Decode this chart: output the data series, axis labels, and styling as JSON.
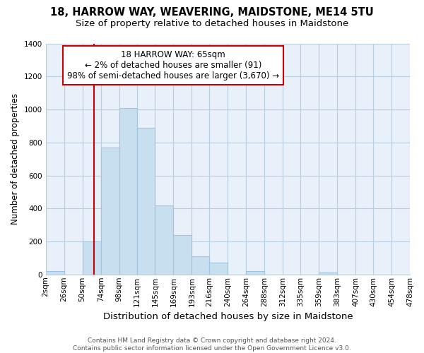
{
  "title": "18, HARROW WAY, WEAVERING, MAIDSTONE, ME14 5TU",
  "subtitle": "Size of property relative to detached houses in Maidstone",
  "xlabel": "Distribution of detached houses by size in Maidstone",
  "ylabel": "Number of detached properties",
  "bin_edges": [
    2,
    26,
    50,
    74,
    98,
    121,
    145,
    169,
    193,
    216,
    240,
    264,
    288,
    312,
    335,
    359,
    383,
    407,
    430,
    454,
    478
  ],
  "bin_counts": [
    20,
    0,
    200,
    770,
    1010,
    890,
    420,
    240,
    110,
    70,
    0,
    20,
    0,
    0,
    0,
    10,
    0,
    0,
    0,
    0
  ],
  "bar_color": "#c8dff0",
  "bar_edge_color": "#a0c4e0",
  "plot_bg_color": "#e8f0fa",
  "grid_color": "#b8cee0",
  "property_size": 65,
  "vline_color": "#cc0000",
  "vline_x": 65,
  "annotation_line1": "18 HARROW WAY: 65sqm",
  "annotation_line2": "← 2% of detached houses are smaller (91)",
  "annotation_line3": "98% of semi-detached houses are larger (3,670) →",
  "annotation_box_color": "white",
  "annotation_box_edge_color": "#cc0000",
  "ylim": [
    0,
    1400
  ],
  "yticks": [
    0,
    200,
    400,
    600,
    800,
    1000,
    1200,
    1400
  ],
  "xtick_labels": [
    "2sqm",
    "26sqm",
    "50sqm",
    "74sqm",
    "98sqm",
    "121sqm",
    "145sqm",
    "169sqm",
    "193sqm",
    "216sqm",
    "240sqm",
    "264sqm",
    "288sqm",
    "312sqm",
    "335sqm",
    "359sqm",
    "383sqm",
    "407sqm",
    "430sqm",
    "454sqm",
    "478sqm"
  ],
  "footer_text": "Contains HM Land Registry data © Crown copyright and database right 2024.\nContains public sector information licensed under the Open Government Licence v3.0.",
  "title_fontsize": 10.5,
  "subtitle_fontsize": 9.5,
  "xlabel_fontsize": 9.5,
  "ylabel_fontsize": 8.5,
  "tick_fontsize": 7.5,
  "annotation_fontsize": 8.5,
  "footer_fontsize": 6.5
}
